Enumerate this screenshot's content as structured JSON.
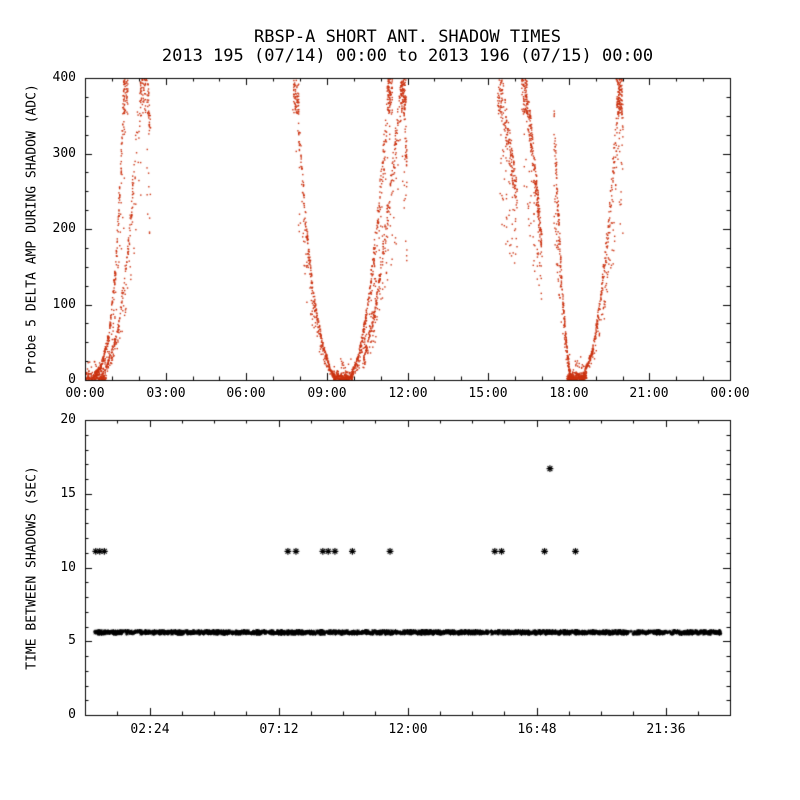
{
  "title": "RBSP-A SHORT ANT. SHADOW TIMES",
  "subtitle": "2013 195 (07/14) 00:00 to 2013 196 (07/15) 00:00",
  "colors": {
    "background": "#ffffff",
    "axis": "#000000",
    "top_points": "#cc3311",
    "bottom_points": "#000000"
  },
  "chart_data": [
    {
      "type": "scatter",
      "panel": "top",
      "title": "RBSP-A SHORT ANT. SHADOW TIMES",
      "subtitle": "2013 195 (07/14) 00:00 to 2013 196 (07/15) 00:00",
      "xlabel": "",
      "ylabel": "Probe 5 DELTA AMP DURING SHADOW (ADC)",
      "grid": false,
      "xlim_hours": [
        0,
        24
      ],
      "ylim": [
        0,
        400
      ],
      "yticks": [
        0,
        100,
        200,
        300,
        400
      ],
      "y_minor_step": 25,
      "xtick_hours": [
        0,
        3,
        6,
        9,
        12,
        15,
        18,
        21,
        24
      ],
      "xtick_labels": [
        "00:00",
        "03:00",
        "06:00",
        "09:00",
        "12:00",
        "15:00",
        "18:00",
        "21:00",
        "00:00"
      ],
      "x_minor_step_hours": 1,
      "marker": "dot",
      "color": "#cc3311",
      "clusters": [
        {
          "name": "cluster_00h",
          "arms": [
            {
              "n": 170,
              "flat": true,
              "pts": [
                [
                  0.05,
                  1
                ],
                [
                  0.78,
                  1
                ]
              ]
            },
            {
              "n": 300,
              "top": true,
              "pts": [
                [
                  0.3,
                  4
                ],
                [
                  0.6,
                  18
                ],
                [
                  0.9,
                  60
                ],
                [
                  1.15,
                  150
                ],
                [
                  1.35,
                  290
                ],
                [
                  1.5,
                  400
                ]
              ]
            },
            {
              "n": 230,
              "top": true,
              "pts": [
                [
                  0.75,
                  12
                ],
                [
                  1.2,
                  60
                ],
                [
                  1.6,
                  170
                ],
                [
                  1.95,
                  330
                ],
                [
                  2.15,
                  400
                ]
              ]
            },
            {
              "n": 45,
              "top": true,
              "pts": [
                [
                  2.3,
                  400
                ],
                [
                  2.42,
                  330
                ]
              ]
            }
          ]
        },
        {
          "name": "cluster_09h",
          "arms": [
            {
              "n": 360,
              "top": true,
              "pts": [
                [
                  7.85,
                  400
                ],
                [
                  8.0,
                  310
                ],
                [
                  8.2,
                  210
                ],
                [
                  8.5,
                  110
                ],
                [
                  8.85,
                  45
                ],
                [
                  9.15,
                  12
                ],
                [
                  9.3,
                  3
                ]
              ]
            },
            {
              "n": 230,
              "flat": true,
              "pts": [
                [
                  9.25,
                  1
                ],
                [
                  9.95,
                  1
                ]
              ]
            },
            {
              "n": 360,
              "top": true,
              "pts": [
                [
                  9.9,
                  5
                ],
                [
                  10.2,
                  35
                ],
                [
                  10.5,
                  90
                ],
                [
                  10.8,
                  180
                ],
                [
                  11.1,
                  290
                ],
                [
                  11.35,
                  400
                ]
              ]
            },
            {
              "n": 300,
              "top": true,
              "pts": [
                [
                  10.35,
                  25
                ],
                [
                  10.8,
                  90
                ],
                [
                  11.2,
                  200
                ],
                [
                  11.6,
                  320
                ],
                [
                  11.85,
                  400
                ]
              ]
            },
            {
              "n": 60,
              "top": true,
              "pts": [
                [
                  11.85,
                  400
                ],
                [
                  11.98,
                  280
                ]
              ]
            }
          ]
        },
        {
          "name": "cluster_16h",
          "arms": [
            {
              "n": 200,
              "top": true,
              "pts": [
                [
                  15.45,
                  400
                ],
                [
                  15.7,
                  330
                ],
                [
                  15.95,
                  272
                ],
                [
                  16.1,
                  240
                ]
              ]
            },
            {
              "n": 290,
              "top": true,
              "pts": [
                [
                  16.35,
                  400
                ],
                [
                  16.6,
                  320
                ],
                [
                  16.85,
                  235
                ],
                [
                  17.0,
                  178
                ]
              ]
            }
          ]
        },
        {
          "name": "cluster_18h",
          "arms": [
            {
              "n": 260,
              "pts": [
                [
                  17.45,
                  350
                ],
                [
                  17.6,
                  230
                ],
                [
                  17.75,
                  120
                ],
                [
                  17.95,
                  35
                ],
                [
                  18.05,
                  6
                ]
              ]
            },
            {
              "n": 270,
              "flat": true,
              "pts": [
                [
                  17.95,
                  1
                ],
                [
                  18.68,
                  1
                ]
              ]
            },
            {
              "n": 340,
              "top": true,
              "pts": [
                [
                  18.55,
                  6
                ],
                [
                  18.9,
                  40
                ],
                [
                  19.2,
                  110
                ],
                [
                  19.5,
                  210
                ],
                [
                  19.75,
                  320
                ],
                [
                  19.9,
                  400
                ]
              ]
            },
            {
              "n": 50,
              "top": true,
              "pts": [
                [
                  19.88,
                  400
                ],
                [
                  20.02,
                  355
                ]
              ]
            }
          ]
        }
      ]
    },
    {
      "type": "scatter",
      "panel": "bottom",
      "xlabel": "",
      "ylabel": "TIME BETWEEN SHADOWS (SEC)",
      "grid": false,
      "xlim_hours": [
        0,
        24
      ],
      "ylim": [
        0,
        20
      ],
      "yticks": [
        0,
        5,
        10,
        15,
        20
      ],
      "y_minor_step": 1,
      "xtick_hours": [
        2.4,
        7.2,
        12,
        16.8,
        21.6
      ],
      "xtick_labels": [
        "02:24",
        "07:12",
        "12:00",
        "16:48",
        "21:36"
      ],
      "x_minor_step_hours": 1.2,
      "marker": "asterisk",
      "color": "#000000",
      "band": {
        "y_center": 5.6,
        "y_spread": 0.22,
        "t_start": 0.35,
        "t_end": 23.68,
        "n": 1500,
        "gaps": [
          [
            8.93,
            8.98
          ],
          [
            17.08,
            17.14
          ]
        ]
      },
      "points": [
        {
          "t": 0.4,
          "y": 11.1
        },
        {
          "t": 0.55,
          "y": 11.1
        },
        {
          "t": 0.72,
          "y": 11.1
        },
        {
          "t": 7.55,
          "y": 11.1
        },
        {
          "t": 7.85,
          "y": 11.1
        },
        {
          "t": 8.85,
          "y": 11.1
        },
        {
          "t": 9.05,
          "y": 11.1
        },
        {
          "t": 9.3,
          "y": 11.1
        },
        {
          "t": 9.95,
          "y": 11.1
        },
        {
          "t": 11.35,
          "y": 11.1
        },
        {
          "t": 15.25,
          "y": 11.1
        },
        {
          "t": 15.5,
          "y": 11.1
        },
        {
          "t": 17.1,
          "y": 11.1
        },
        {
          "t": 18.25,
          "y": 11.1
        },
        {
          "t": 17.3,
          "y": 16.7
        }
      ]
    }
  ]
}
